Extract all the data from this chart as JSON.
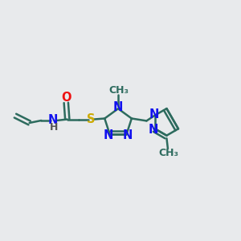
{
  "bg_color": "#e8eaec",
  "bond_color": "#2d6b5e",
  "bond_width": 1.8,
  "atom_colors": {
    "O": "#ee1111",
    "N": "#1111ee",
    "S": "#ccaa00",
    "H": "#555555",
    "C": "#2d6b5e"
  },
  "font_size": 10.5,
  "small_font": 9.0
}
